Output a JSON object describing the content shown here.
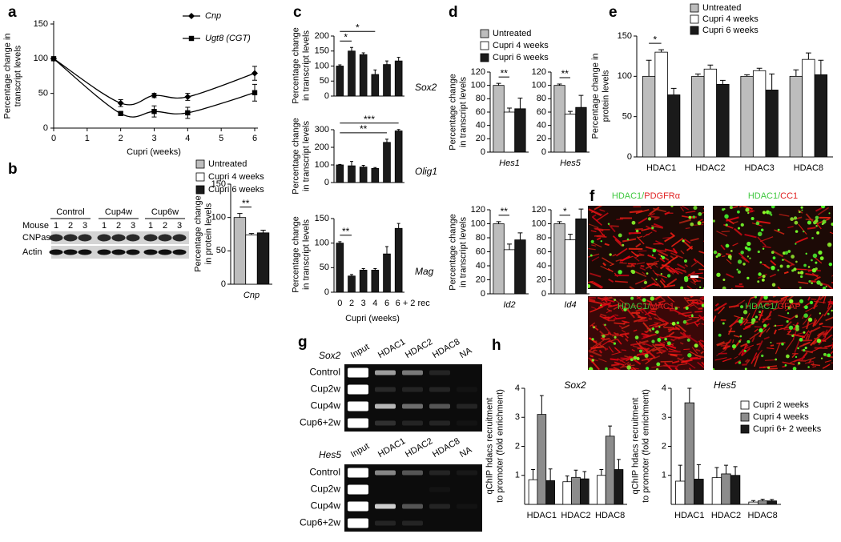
{
  "panels": [
    "a",
    "b",
    "c",
    "d",
    "e",
    "f",
    "g",
    "h"
  ],
  "chart_data": [
    {
      "type": "line",
      "x": [
        0,
        2,
        3,
        4,
        6
      ],
      "xlim": [
        0,
        6
      ],
      "xticks": [
        0,
        1,
        2,
        3,
        4,
        5,
        6
      ],
      "ylim": [
        0,
        150
      ],
      "yticks": [
        0,
        50,
        100,
        150
      ],
      "xlabel": "Cupri (weeks)",
      "ylabel": [
        "Percentage change in",
        "transcript levels"
      ],
      "series": [
        {
          "name": "Cnp",
          "color": "#000000",
          "marker": "diamond",
          "values": [
            100,
            36,
            47,
            45,
            79
          ],
          "errors": [
            0,
            5,
            3,
            5,
            10
          ]
        },
        {
          "name": "Ugt8 (CGT)",
          "color": "#000000",
          "marker": "square",
          "values": [
            100,
            21,
            24,
            22,
            51
          ],
          "errors": [
            0,
            3,
            8,
            8,
            12
          ]
        }
      ]
    },
    {
      "type": "bar",
      "categories": [
        "Cnp"
      ],
      "ylim": [
        0,
        150
      ],
      "yticks": [
        0,
        50,
        100,
        150
      ],
      "ylabel": [
        "Percentage change",
        "in protein levels"
      ],
      "series": [
        {
          "name": "Untreated",
          "color": "#bdbdbd",
          "values": [
            100
          ],
          "errors": [
            6
          ]
        },
        {
          "name": "Cupri 4 weeks",
          "color": "#ffffff",
          "values": [
            74
          ],
          "errors": [
            2
          ]
        },
        {
          "name": "Cupri 6 weeks",
          "color": "#1a1a1a",
          "values": [
            77
          ],
          "errors": [
            4
          ]
        }
      ],
      "annotations": [
        "**"
      ]
    },
    {
      "type": "bar",
      "title": "Sox2",
      "ylim": [
        0,
        200
      ],
      "yticks": [
        0,
        50,
        100,
        150,
        200
      ],
      "ylabel": [
        "Percentage change",
        "in transcript levels"
      ],
      "color": "#1a1a1a",
      "values": [
        100,
        150,
        138,
        72,
        105,
        117
      ],
      "errors": [
        4,
        12,
        6,
        15,
        12,
        12
      ],
      "annotations": [
        "*",
        "*"
      ]
    },
    {
      "type": "bar",
      "title": "Olig1",
      "ylim": [
        0,
        300
      ],
      "yticks": [
        0,
        100,
        200,
        300
      ],
      "ylabel": [
        "Percentage change",
        "in transcript levels"
      ],
      "color": "#1a1a1a",
      "values": [
        100,
        95,
        88,
        80,
        228,
        293
      ],
      "errors": [
        3,
        25,
        10,
        5,
        18,
        8
      ],
      "annotations": [
        "***",
        "**"
      ]
    },
    {
      "type": "bar",
      "title": "Mag",
      "categories": [
        "0",
        "2",
        "3",
        "4",
        "6",
        "6 + 2 rec"
      ],
      "xlabel": "Cupri (weeks)",
      "ylim": [
        0,
        150
      ],
      "yticks": [
        0,
        50,
        100,
        150
      ],
      "ylabel": [
        "Percentage change",
        "in transcript levels"
      ],
      "color": "#1a1a1a",
      "values": [
        100,
        33,
        45,
        45,
        78,
        130
      ],
      "errors": [
        3,
        3,
        3,
        3,
        15,
        10
      ],
      "annotations": [
        "**"
      ]
    },
    {
      "type": "bar",
      "categories": [
        "Hes1"
      ],
      "ylim": [
        0,
        120
      ],
      "yticks": [
        0,
        20,
        40,
        60,
        80,
        100,
        120
      ],
      "ylabel": [
        "Percentage change",
        "in transcript levels"
      ],
      "series": [
        {
          "name": "Untreated",
          "color": "#bdbdbd",
          "values": [
            100
          ],
          "errors": [
            3
          ]
        },
        {
          "name": "Cupri 4 weeks",
          "color": "#ffffff",
          "values": [
            60
          ],
          "errors": [
            6
          ]
        },
        {
          "name": "Cupri 6 weeks",
          "color": "#1a1a1a",
          "values": [
            65
          ],
          "errors": [
            16
          ]
        }
      ],
      "annotations": [
        "**"
      ]
    },
    {
      "type": "bar",
      "categories": [
        "Hes5"
      ],
      "ylim": [
        0,
        120
      ],
      "yticks": [
        0,
        20,
        40,
        60,
        80,
        100,
        120
      ],
      "series": [
        {
          "color": "#bdbdbd",
          "values": [
            100
          ],
          "errors": [
            2
          ]
        },
        {
          "color": "#ffffff",
          "values": [
            57
          ],
          "errors": [
            4
          ]
        },
        {
          "color": "#1a1a1a",
          "values": [
            67
          ],
          "errors": [
            18
          ]
        }
      ],
      "annotations": [
        "**"
      ]
    },
    {
      "type": "bar",
      "categories": [
        "Id2"
      ],
      "ylim": [
        0,
        120
      ],
      "yticks": [
        0,
        20,
        40,
        60,
        80,
        100,
        120
      ],
      "ylabel": [
        "Percentage change",
        "in transcript levels"
      ],
      "series": [
        {
          "color": "#bdbdbd",
          "values": [
            100
          ],
          "errors": [
            3
          ]
        },
        {
          "color": "#ffffff",
          "values": [
            63
          ],
          "errors": [
            8
          ]
        },
        {
          "color": "#1a1a1a",
          "values": [
            77
          ],
          "errors": [
            10
          ]
        }
      ],
      "annotations": [
        "**"
      ]
    },
    {
      "type": "bar",
      "categories": [
        "Id4"
      ],
      "ylim": [
        0,
        120
      ],
      "yticks": [
        0,
        20,
        40,
        60,
        80,
        100,
        120
      ],
      "series": [
        {
          "color": "#bdbdbd",
          "values": [
            100
          ],
          "errors": [
            3
          ]
        },
        {
          "color": "#ffffff",
          "values": [
            77
          ],
          "errors": [
            8
          ]
        },
        {
          "color": "#1a1a1a",
          "values": [
            107
          ],
          "errors": [
            14
          ]
        }
      ],
      "annotations": [
        "*"
      ]
    },
    {
      "type": "bar",
      "categories": [
        "HDAC1",
        "HDAC2",
        "HDAC3",
        "HDAC8"
      ],
      "ylim": [
        0,
        150
      ],
      "yticks": [
        0,
        50,
        100,
        150
      ],
      "ylabel": [
        "Percentage change in",
        "protein levels"
      ],
      "series": [
        {
          "name": "Untreated",
          "color": "#bdbdbd",
          "values": [
            100,
            100,
            100,
            100
          ],
          "errors": [
            20,
            3,
            2,
            8
          ]
        },
        {
          "name": "Cupri 4 weeks",
          "color": "#ffffff",
          "values": [
            130,
            109,
            107,
            121
          ],
          "errors": [
            3,
            5,
            3,
            8
          ]
        },
        {
          "name": "Cupri 6 weeks",
          "color": "#1a1a1a",
          "values": [
            77,
            90,
            83,
            102
          ],
          "errors": [
            8,
            5,
            20,
            18
          ]
        }
      ],
      "annotations": [
        "*"
      ]
    },
    {
      "type": "bar",
      "title": "Sox2",
      "categories": [
        "HDAC1",
        "HDAC2",
        "HDAC8"
      ],
      "ylim": [
        0,
        4
      ],
      "yticks": [
        1,
        2,
        3,
        4
      ],
      "ylabel": [
        "qChIP hdacs recruitment",
        "to promoter (fold enrichment)"
      ],
      "series": [
        {
          "color": "#ffffff",
          "values": [
            0.85,
            0.78,
            1.0
          ],
          "errors": [
            0.35,
            0.2,
            0.2
          ]
        },
        {
          "color": "#8c8c8c",
          "values": [
            3.1,
            0.93,
            2.35
          ],
          "errors": [
            0.65,
            0.25,
            0.35
          ]
        },
        {
          "color": "#1a1a1a",
          "values": [
            0.82,
            0.88,
            1.2
          ],
          "errors": [
            0.4,
            0.25,
            0.35
          ]
        }
      ]
    },
    {
      "type": "bar",
      "title": "Hes5",
      "categories": [
        "HDAC1",
        "HDAC2",
        "HDAC8"
      ],
      "ylim": [
        0,
        4
      ],
      "yticks": [
        1,
        2,
        3,
        4
      ],
      "ylabel": [
        "qChIP hdacs recruitment",
        "to promoter (fold enrichment)"
      ],
      "series": [
        {
          "name": "Cupri 2 weeks",
          "color": "#ffffff",
          "values": [
            0.8,
            0.92,
            0.08
          ],
          "errors": [
            0.55,
            0.35,
            0.05
          ]
        },
        {
          "name": "Cupri 4 weeks",
          "color": "#8c8c8c",
          "values": [
            3.5,
            1.05,
            0.12
          ],
          "errors": [
            0.5,
            0.3,
            0.06
          ]
        },
        {
          "name": "Cupri 6+ 2 weeks",
          "color": "#1a1a1a",
          "values": [
            0.87,
            1.0,
            0.12
          ],
          "errors": [
            0.5,
            0.3,
            0.05
          ]
        }
      ]
    }
  ],
  "blot": {
    "groups": [
      "Control",
      "Cup4w",
      "Cup6w"
    ],
    "row_title": "Mouse",
    "lanes": [
      "1",
      "2",
      "3",
      "1",
      "2",
      "3",
      "1",
      "2",
      "3"
    ],
    "rows": [
      "CNPase",
      "Actin"
    ]
  },
  "micrographs": [
    {
      "green": "HDAC1/",
      "red": "PDGFRα"
    },
    {
      "green": "HDAC1/",
      "red": "CC1"
    },
    {
      "green": "HDAC1/",
      "red": "MAC1"
    },
    {
      "green": "HDAC1/",
      "red": "GFAP"
    }
  ],
  "gels": [
    {
      "gene": "Sox2",
      "columns": [
        "Input",
        "HDAC1",
        "HDAC2",
        "HDAC8",
        "NA"
      ],
      "rows": [
        "Control",
        "Cup2w",
        "Cup4w",
        "Cup6+2w"
      ]
    },
    {
      "gene": "Hes5",
      "columns": [
        "Input",
        "HDAC1",
        "HDAC2",
        "HDAC8",
        "NA"
      ],
      "rows": [
        "Control",
        "Cup2w",
        "Cup4w",
        "Cup6+2w"
      ]
    }
  ]
}
